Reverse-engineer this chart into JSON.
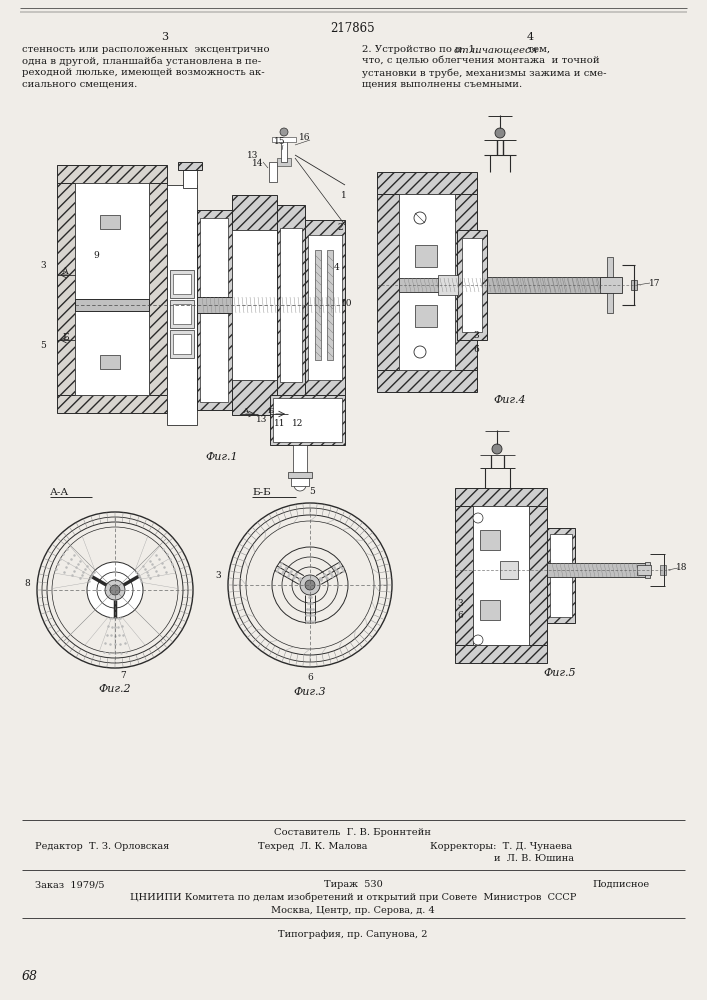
{
  "page_number": "217865",
  "col_left": "3",
  "col_right": "4",
  "bg_color": "#f0ede8",
  "text_color": "#1a1a1a",
  "line_color": "#2a2a2a",
  "hatch_color": "#3a3a3a",
  "text_block_left": [
    "стенность или расположенных  эксцентрично",
    "одна в другой, планшайба установлена в пе-",
    "реходной люльке, имеющей возможность ак-",
    "сиального смещения."
  ],
  "text_block_right_plain": [
    "что, с целью облегчения монтажа  и точной",
    "установки в трубе, механизмы зажима и сме-",
    "щения выполнены съемными."
  ],
  "footer_line1": "Составитель  Г. В. Броннтейн",
  "footer_line2_col1": "Редактор  Т. З. Орловская",
  "footer_line2_col2": "Техред  Л. К. Малова",
  "footer_line2_col3": "Корректоры:  Т. Д. Чунаева",
  "footer_line2_col4": "и  Л. В. Юшина",
  "footer_line3_col1": "Заказ  1979/5",
  "footer_line3_col2": "Тираж  530",
  "footer_line3_col3": "Подписное",
  "footer_line4": "ЦНИИПИ Комитета по делам изобретений и открытий при Совете  Министров  СССР",
  "footer_line5": "Москва, Центр, пр. Серова, д. 4",
  "footer_line6": "Типография, пр. Сапунова, 2",
  "stamp": "68"
}
